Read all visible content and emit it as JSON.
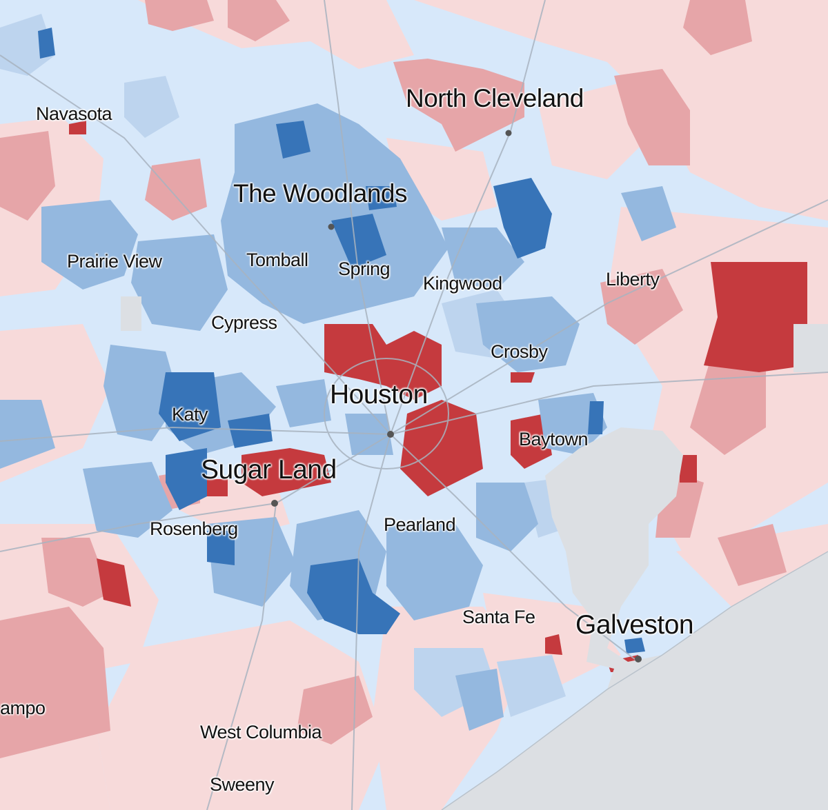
{
  "colors": {
    "sea": "#dcdfe3",
    "land_base": "#d7e8fa",
    "red_light": "#f7dada",
    "red_mid": "#e6a5a8",
    "red_dark": "#c53a3e",
    "blue_light": "#d4e6fa",
    "blue_mid": "#94b8df",
    "blue_dark": "#3774b8",
    "road": "#a8b3bf",
    "dot": "#555555"
  },
  "cities": [
    {
      "key": "navasota",
      "label": "Navasota",
      "size": "md"
    },
    {
      "key": "north-cleveland",
      "label": "North Cleveland",
      "size": "lg"
    },
    {
      "key": "the-woodlands",
      "label": "The Woodlands",
      "size": "lg"
    },
    {
      "key": "prairie-view",
      "label": "Prairie View",
      "size": "md"
    },
    {
      "key": "tomball",
      "label": "Tomball",
      "size": "md"
    },
    {
      "key": "spring",
      "label": "Spring",
      "size": "md"
    },
    {
      "key": "kingwood",
      "label": "Kingwood",
      "size": "md"
    },
    {
      "key": "liberty",
      "label": "Liberty",
      "size": "md"
    },
    {
      "key": "cypress",
      "label": "Cypress",
      "size": "md"
    },
    {
      "key": "crosby",
      "label": "Crosby",
      "size": "md"
    },
    {
      "key": "houston",
      "label": "Houston",
      "size": "xl"
    },
    {
      "key": "katy",
      "label": "Katy",
      "size": "md"
    },
    {
      "key": "baytown",
      "label": "Baytown",
      "size": "md"
    },
    {
      "key": "sugar-land",
      "label": "Sugar Land",
      "size": "xl"
    },
    {
      "key": "rosenberg",
      "label": "Rosenberg",
      "size": "md"
    },
    {
      "key": "pearland",
      "label": "Pearland",
      "size": "md"
    },
    {
      "key": "santa-fe",
      "label": "Santa Fe",
      "size": "md"
    },
    {
      "key": "galveston",
      "label": "Galveston",
      "size": "xl"
    },
    {
      "key": "ampo",
      "label": "ampo",
      "size": "md"
    },
    {
      "key": "west-columbia",
      "label": "West Columbia",
      "size": "md"
    },
    {
      "key": "sweeny",
      "label": "Sweeny",
      "size": "md"
    }
  ]
}
